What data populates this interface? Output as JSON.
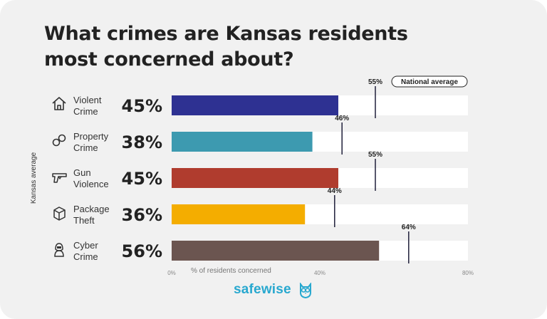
{
  "card": {
    "background": "#f1f1f1"
  },
  "chart_data": {
    "type": "bar",
    "title": "What crimes are Kansas residents most concerned about?",
    "ylabel": "Kansas average",
    "xlabel": "% of residents concerned",
    "xlim": [
      0,
      80
    ],
    "xticks": [
      "0%",
      "40%",
      "80%"
    ],
    "xtick_values": [
      0,
      40,
      80
    ],
    "national_average_label": "National average",
    "categories": [
      {
        "line1": "Violent",
        "line2": "Crime",
        "icon": "house-icon",
        "value": 45,
        "value_label": "45%",
        "national": 55,
        "national_label": "55%",
        "color": "#2e3192"
      },
      {
        "line1": "Property",
        "line2": "Crime",
        "icon": "handcuffs-icon",
        "value": 38,
        "value_label": "38%",
        "national": 46,
        "national_label": "46%",
        "color": "#3d9ab0"
      },
      {
        "line1": "Gun",
        "line2": "Violence",
        "icon": "gun-icon",
        "value": 45,
        "value_label": "45%",
        "national": 55,
        "national_label": "55%",
        "color": "#b03c2e"
      },
      {
        "line1": "Package",
        "line2": "Theft",
        "icon": "package-icon",
        "value": 36,
        "value_label": "36%",
        "national": 44,
        "national_label": "44%",
        "color": "#f4ad00"
      },
      {
        "line1": "Cyber",
        "line2": "Crime",
        "icon": "hacker-icon",
        "value": 56,
        "value_label": "56%",
        "national": 64,
        "national_label": "64%",
        "color": "#6b5550"
      }
    ]
  },
  "brand": {
    "name": "safewise",
    "color": "#28a8cf",
    "owl_icon": "owl-icon"
  }
}
